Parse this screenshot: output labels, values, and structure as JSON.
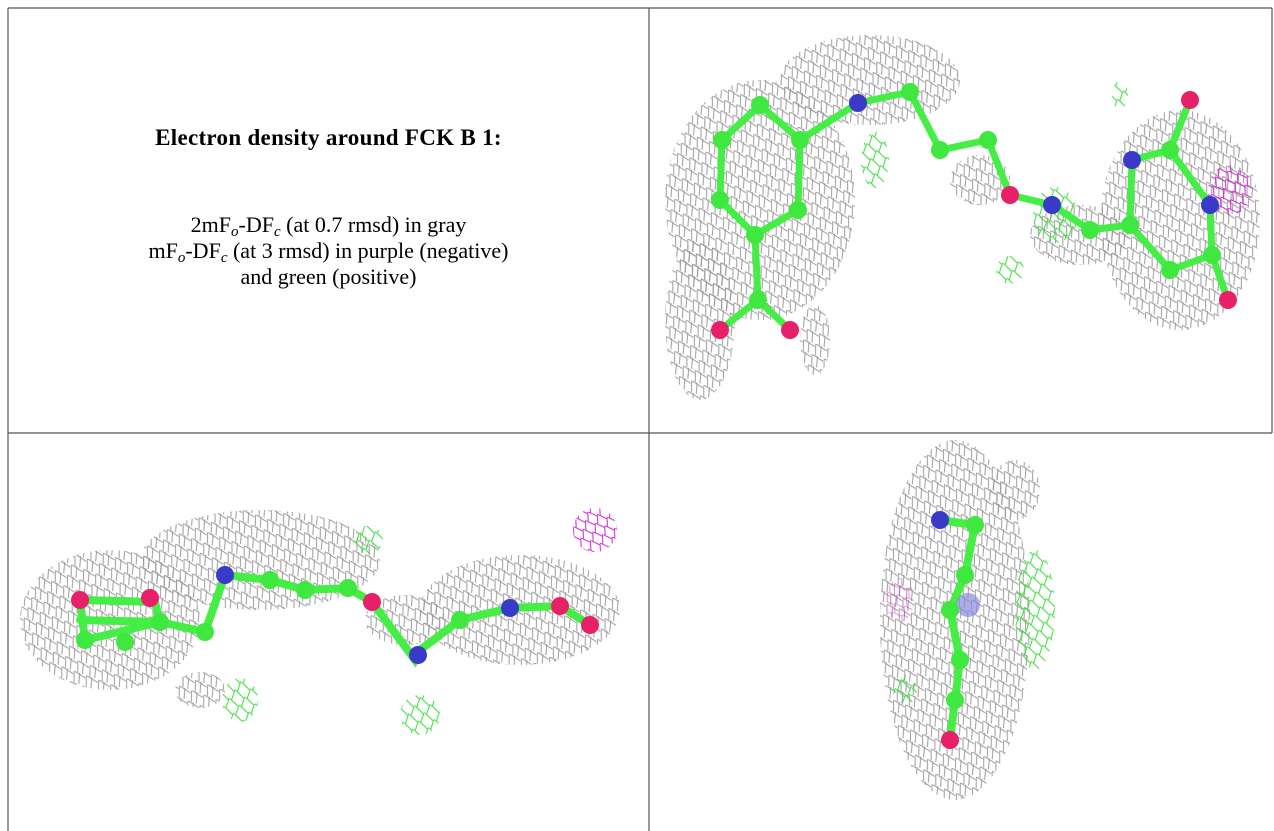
{
  "caption": {
    "title": "Electron density around FCK B 1:",
    "line1": {
      "prefix": "2mF",
      "sub1": "o",
      "mid": "-DF",
      "sub2": "c",
      "suffix": " (at 0.7 rmsd) in gray"
    },
    "line2": {
      "prefix": "mF",
      "sub1": "o",
      "mid": "-DF",
      "sub2": "c",
      "suffix": " (at 3 rmsd) in purple (negative)"
    },
    "line3": "and green (positive)"
  }
}
